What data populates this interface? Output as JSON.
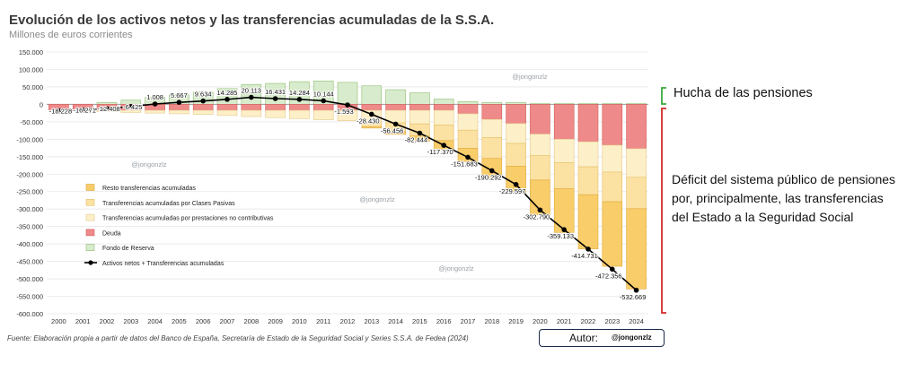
{
  "header": {
    "title": "Evolución de los activos netos y las transferencias acumuladas de la S.S.A.",
    "subtitle": "Millones de euros corrientes"
  },
  "footer": {
    "source": "Fuente: Elaboración propia a partir de datos del Banco de España, Secretaría de Estado de la Seguridad Social y Series S.S.A. de Fedea (2024)",
    "author_label": "Autor:",
    "author_handle": "@jongonzlz"
  },
  "annotations": {
    "hucha": "Hucha de las pensiones",
    "deficit": "Déficit del sistema público de pensiones por, principalmente, las transferencias del Estado a la Seguridad Social",
    "watermark": "@jongonzlz"
  },
  "chart_data": {
    "type": "bar",
    "stacked": true,
    "years": [
      "2000",
      "2001",
      "2002",
      "2003",
      "2004",
      "2005",
      "2006",
      "2007",
      "2008",
      "2009",
      "2010",
      "2011",
      "2012",
      "2013",
      "2014",
      "2015",
      "2016",
      "2017",
      "2018",
      "2019",
      "2020",
      "2021",
      "2022",
      "2023",
      "2024"
    ],
    "ylim": [
      -600000,
      150000
    ],
    "yticks": [
      "-600.000",
      "-550.000",
      "-500.000",
      "-450.000",
      "-400.000",
      "-350.000",
      "-300.000",
      "-250.000",
      "-200.000",
      "-150.000",
      "-100.000",
      "-50.000",
      "0",
      "50.000",
      "100.000",
      "150.000"
    ],
    "grid": true,
    "legend_position": "inside-left",
    "series": [
      {
        "name": "Fondo de Reserva",
        "color": "#d8ebcc",
        "stroke": "#8fbf72",
        "values": [
          0,
          0,
          5000,
          12000,
          20000,
          27000,
          35000,
          45000,
          57000,
          60000,
          65000,
          67000,
          63000,
          53000,
          42000,
          33000,
          15000,
          8000,
          5000,
          5000,
          2000,
          2000,
          2000,
          2000,
          2000
        ]
      },
      {
        "name": "Deuda",
        "color": "#ef8a8a",
        "stroke": "#d05a5a",
        "values": [
          -18000,
          -17000,
          -17000,
          -17000,
          -17000,
          -17000,
          -17000,
          -17000,
          -17000,
          -17000,
          -17000,
          -17000,
          -17000,
          -17000,
          -17000,
          -17000,
          -17000,
          -27000,
          -43000,
          -55000,
          -85000,
          -100000,
          -107000,
          -117000,
          -127000
        ]
      },
      {
        "name": "Transferencias acumuladas por prestaciones no contributivas",
        "color": "#fdf0c8",
        "stroke": "#e3c98a",
        "values": [
          0,
          -2000,
          -4000,
          -6000,
          -8000,
          -10000,
          -12000,
          -15000,
          -18000,
          -21000,
          -24000,
          -27000,
          -30000,
          -33000,
          -36000,
          -39000,
          -42000,
          -47000,
          -52000,
          -57000,
          -62000,
          -67000,
          -72000,
          -77000,
          -82000
        ]
      },
      {
        "name": "Transferencias acumuladas por Clases Pasivas",
        "color": "#fbe1a2",
        "stroke": "#e3c06a",
        "values": [
          0,
          0,
          0,
          0,
          0,
          0,
          0,
          0,
          0,
          0,
          0,
          0,
          0,
          -15000,
          -25000,
          -35000,
          -45000,
          -52000,
          -60000,
          -65000,
          -70000,
          -75000,
          -80000,
          -85000,
          -90000
        ]
      },
      {
        "name": "Resto transferencias acumuladas",
        "color": "#f8cd6a",
        "stroke": "#e0a83a",
        "values": [
          0,
          0,
          0,
          0,
          0,
          0,
          0,
          0,
          0,
          0,
          0,
          0,
          0,
          -3000,
          -8000,
          -15000,
          -25000,
          -38000,
          -55000,
          -75000,
          -100000,
          -125000,
          -155000,
          -185000,
          -230000
        ]
      }
    ],
    "line": {
      "name": "Activos netos + Transferencias acumuladas",
      "color": "#000000",
      "values": [
        -18228,
        -16271,
        -12408,
        -6425,
        1008,
        5667,
        9634,
        14285,
        20113,
        16431,
        14284,
        10144,
        -1593,
        -28430,
        -56456,
        -82444,
        -117370,
        -151683,
        -190292,
        -229597,
        -302790,
        -359133,
        -414731,
        -472356,
        -532669
      ],
      "labels": [
        "-18.228",
        "-16.271",
        "-12.408",
        "-6.425",
        "1.008",
        "5.667",
        "9.634",
        "14.285",
        "20.113",
        "16.431",
        "14.284",
        "10.144",
        "-1.593",
        "-28.430",
        "-56.456",
        "-82.444",
        "-117.370",
        "-151.683",
        "-190.292",
        "-229.597",
        "-302.790",
        "-359.133",
        "-414.731",
        "-472.356",
        "-532.669"
      ]
    },
    "legend_order": [
      "Resto transferencias acumuladas",
      "Transferencias acumuladas por Clases Pasivas",
      "Transferencias acumuladas por prestaciones no contributivas",
      "Deuda",
      "Fondo de Reserva",
      "Activos netos + Transferencias acumuladas"
    ]
  }
}
